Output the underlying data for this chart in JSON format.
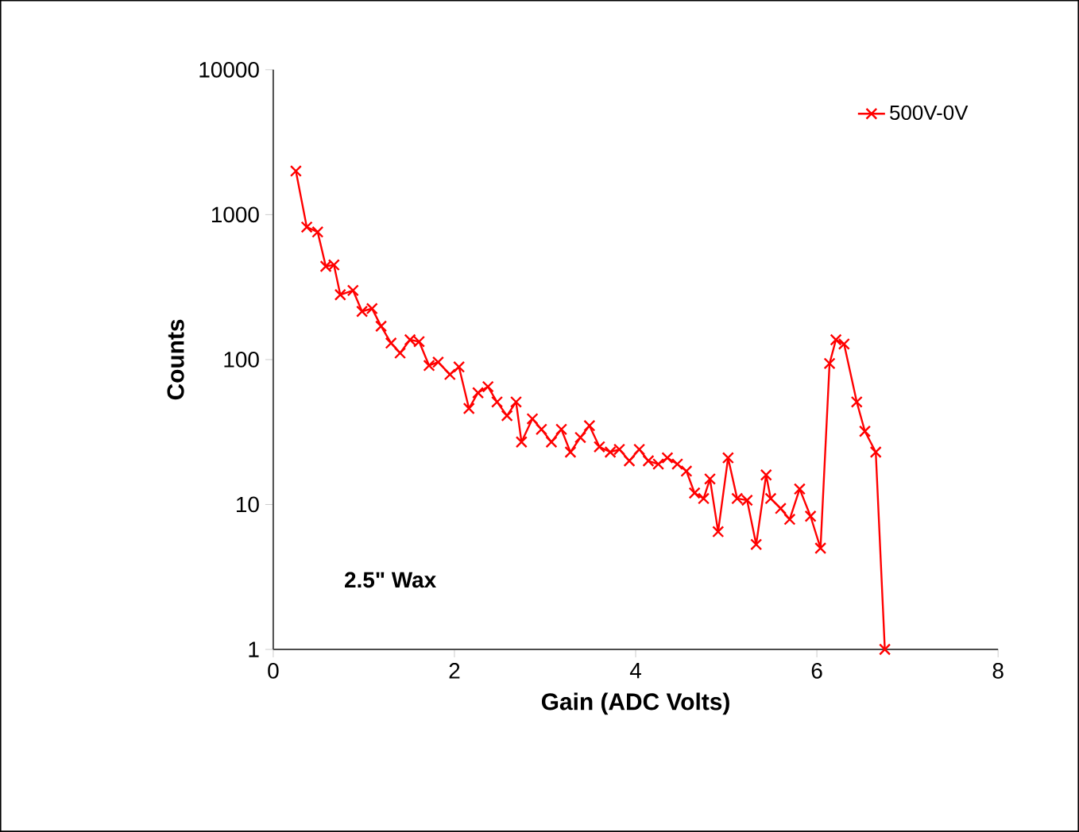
{
  "chart_data": {
    "type": "line",
    "xlabel": "Gain (ADC Volts)",
    "ylabel": "Counts",
    "annotations": [
      "2.5\" Wax"
    ],
    "log": "y",
    "xlim": [
      0,
      8
    ],
    "xticks": [
      0,
      2,
      4,
      6,
      8
    ],
    "ylim": [
      1,
      10000
    ],
    "yticks": [
      1,
      10,
      100,
      1000,
      10000
    ],
    "grid": false,
    "legend": "top right",
    "marker": "cross",
    "line_style": "solid",
    "series": [
      {
        "name": "500V-0V",
        "color": "#ff0000",
        "x": [
          0.25,
          0.37,
          0.49,
          0.58,
          0.67,
          0.74,
          0.88,
          0.98,
          1.09,
          1.19,
          1.3,
          1.4,
          1.51,
          1.61,
          1.72,
          1.82,
          1.95,
          2.05,
          2.16,
          2.26,
          2.37,
          2.47,
          2.58,
          2.68,
          2.74,
          2.86,
          2.96,
          3.07,
          3.18,
          3.28,
          3.39,
          3.49,
          3.6,
          3.72,
          3.82,
          3.93,
          4.04,
          4.14,
          4.25,
          4.35,
          4.46,
          4.56,
          4.65,
          4.75,
          4.82,
          4.91,
          5.02,
          5.12,
          5.23,
          5.33,
          5.44,
          5.49,
          5.6,
          5.7,
          5.81,
          5.93,
          6.04,
          6.14,
          6.21,
          6.3,
          6.44,
          6.53,
          6.65,
          6.75
        ],
        "values": [
          2000,
          820,
          760,
          440,
          450,
          280,
          300,
          215,
          225,
          170,
          130,
          111,
          137,
          133,
          91,
          96,
          79,
          89,
          46,
          59,
          65,
          51,
          41,
          51,
          27,
          39,
          33,
          27,
          33,
          23,
          29,
          35,
          25,
          23,
          24,
          20,
          24,
          20,
          19,
          21,
          19,
          17,
          12,
          11,
          15,
          6.5,
          21,
          11,
          10.7,
          5.3,
          16,
          11,
          9.4,
          7.9,
          12.8,
          8.3,
          5,
          94,
          137,
          128,
          51,
          32,
          23,
          1
        ]
      }
    ]
  }
}
